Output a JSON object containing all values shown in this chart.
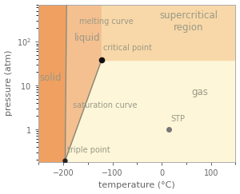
{
  "xlim": [
    -250,
    150
  ],
  "ylim_log": [
    0.18,
    700
  ],
  "xlabel": "temperature (°C)",
  "ylabel": "pressure (atm)",
  "bg_color": "#ffffff",
  "solid_color": "#f0a060",
  "liquid_color": "#f5c090",
  "gas_color": "#fdf6d8",
  "supercritical_color": "#f8d8a8",
  "curve_color": "#888878",
  "label_color": "#999988",
  "triple_point": [
    -196,
    0.195
  ],
  "critical_point": [
    -122,
    38
  ],
  "stp_point": [
    15,
    1.0
  ],
  "fontsize_labels": 7,
  "fontsize_regions": 8.5,
  "fontsize_axis": 8
}
